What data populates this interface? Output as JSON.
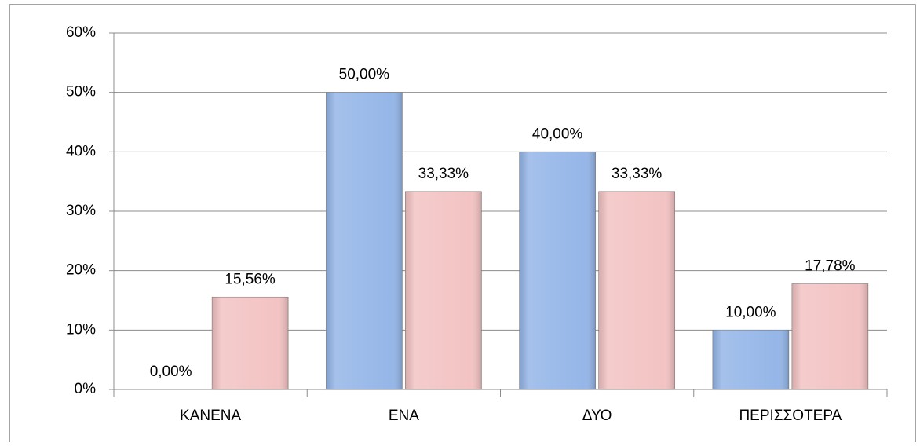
{
  "chart_data": {
    "type": "bar",
    "categories": [
      "ΚΑΝΕΝΑ",
      "ΕΝΑ",
      "ΔΥΟ",
      "ΠΕΡΙΣΣΟΤΕΡΑ"
    ],
    "series": [
      {
        "color": "#95b6e8",
        "values": [
          0,
          50,
          40,
          10
        ],
        "value_labels": [
          "0,00%",
          "50,00%",
          "40,00%",
          "10,00%"
        ]
      },
      {
        "color": "#f3c3c3",
        "values": [
          15.56,
          33.33,
          33.33,
          17.78
        ],
        "value_labels": [
          "15,56%",
          "33,33%",
          "33,33%",
          "17,78%"
        ]
      }
    ],
    "ylim": [
      0,
      60
    ],
    "yticks": [
      {
        "value": 0,
        "label": "0%"
      },
      {
        "value": 10,
        "label": "10%"
      },
      {
        "value": 20,
        "label": "20%"
      },
      {
        "value": 30,
        "label": "30%"
      },
      {
        "value": 40,
        "label": "40%"
      },
      {
        "value": 50,
        "label": "50%"
      },
      {
        "value": 60,
        "label": "60%"
      }
    ],
    "grid": true
  }
}
